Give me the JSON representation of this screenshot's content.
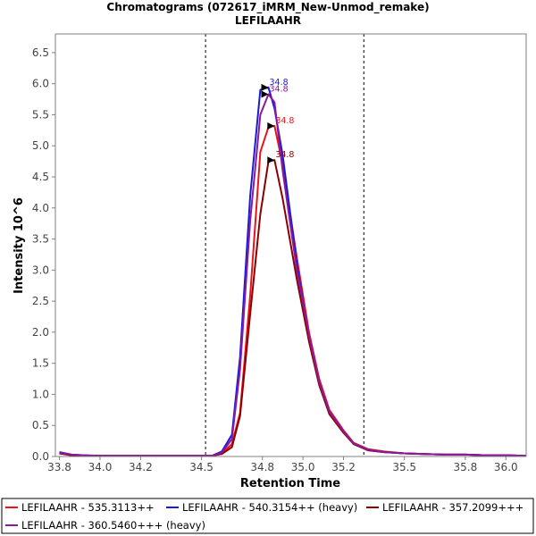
{
  "chart_data": {
    "type": "line",
    "title": "Chromatograms (072617_iMRM_New-Unmod_remake)",
    "subtitle": "LEFILAAHR",
    "xlabel": "Retention Time",
    "ylabel": "Intensity 10^6",
    "xlim": [
      33.78,
      36.1
    ],
    "ylim": [
      0,
      6.8
    ],
    "x_ticks": [
      "33.8",
      "34.0",
      "34.2",
      "34.5",
      "34.8",
      "35.0",
      "35.2",
      "35.5",
      "35.8",
      "36.0"
    ],
    "x_tick_values": [
      33.8,
      34.0,
      34.2,
      34.5,
      34.8,
      35.0,
      35.2,
      35.5,
      35.8,
      36.0
    ],
    "y_ticks": [
      "0.0",
      "0.5",
      "1.0",
      "1.5",
      "2.0",
      "2.5",
      "3.0",
      "3.5",
      "4.0",
      "4.5",
      "5.0",
      "5.5",
      "6.0",
      "6.5"
    ],
    "y_tick_values": [
      0.0,
      0.5,
      1.0,
      1.5,
      2.0,
      2.5,
      3.0,
      3.5,
      4.0,
      4.5,
      5.0,
      5.5,
      6.0,
      6.5
    ],
    "integration_bounds": [
      34.52,
      35.3
    ],
    "x": [
      33.8,
      33.86,
      33.92,
      34.0,
      34.1,
      34.2,
      34.3,
      34.4,
      34.5,
      34.55,
      34.6,
      34.65,
      34.69,
      34.74,
      34.79,
      34.83,
      34.86,
      34.9,
      34.97,
      35.03,
      35.08,
      35.13,
      35.2,
      35.25,
      35.32,
      35.4,
      35.5,
      35.6,
      35.7,
      35.8,
      35.9,
      36.0,
      36.1
    ],
    "series": [
      {
        "name": "LEFILAAHR - 535.3113++",
        "color": "#e8141c",
        "values": [
          0.05,
          0.02,
          0.01,
          0.01,
          0.01,
          0.01,
          0.01,
          0.01,
          0.01,
          0.01,
          0.05,
          0.2,
          0.7,
          2.6,
          4.9,
          5.3,
          5.32,
          4.7,
          3.2,
          2.0,
          1.25,
          0.75,
          0.42,
          0.22,
          0.12,
          0.08,
          0.05,
          0.04,
          0.03,
          0.03,
          0.02,
          0.02,
          0.01
        ],
        "peak_label": "34.8"
      },
      {
        "name": "LEFILAAHR - 540.3154++ (heavy)",
        "color": "#1a1adc",
        "values": [
          0.07,
          0.03,
          0.02,
          0.01,
          0.01,
          0.01,
          0.01,
          0.01,
          0.01,
          0.01,
          0.08,
          0.35,
          1.6,
          4.2,
          5.9,
          5.94,
          5.6,
          4.85,
          3.1,
          1.9,
          1.2,
          0.72,
          0.4,
          0.2,
          0.1,
          0.07,
          0.05,
          0.04,
          0.03,
          0.03,
          0.02,
          0.02,
          0.01
        ],
        "peak_label": "34.8"
      },
      {
        "name": "LEFILAAHR - 357.2099+++",
        "color": "#8b0000",
        "values": [
          0.05,
          0.02,
          0.01,
          0.01,
          0.01,
          0.01,
          0.01,
          0.01,
          0.01,
          0.01,
          0.04,
          0.15,
          0.65,
          2.3,
          3.9,
          4.75,
          4.77,
          4.15,
          2.85,
          1.85,
          1.15,
          0.68,
          0.38,
          0.2,
          0.1,
          0.07,
          0.05,
          0.04,
          0.03,
          0.03,
          0.02,
          0.02,
          0.01
        ],
        "peak_label": "34.8"
      },
      {
        "name": "LEFILAAHR - 360.5460+++ (heavy)",
        "color": "#8b1a9b",
        "values": [
          0.06,
          0.03,
          0.02,
          0.01,
          0.01,
          0.01,
          0.01,
          0.01,
          0.01,
          0.01,
          0.06,
          0.28,
          1.4,
          3.8,
          5.5,
          5.83,
          5.7,
          4.6,
          3.0,
          1.95,
          1.2,
          0.72,
          0.4,
          0.21,
          0.11,
          0.07,
          0.05,
          0.04,
          0.03,
          0.03,
          0.02,
          0.02,
          0.01
        ],
        "peak_label": "34.8"
      }
    ],
    "legend_position": "bottom"
  }
}
